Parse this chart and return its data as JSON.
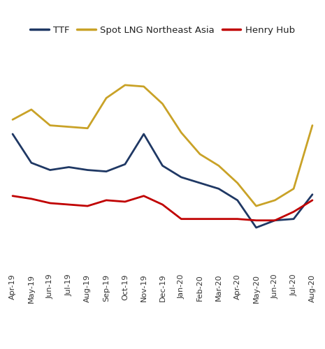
{
  "labels": [
    "Apr-19",
    "May-19",
    "Jun-19",
    "Jul-19",
    "Aug-19",
    "Sep-19",
    "Oct-19",
    "Nov-19",
    "Dec-19",
    "Jan-20",
    "Feb-20",
    "Mar-20",
    "Apr-20",
    "May-20",
    "Jun-20",
    "Jul-20",
    "Aug-20"
  ],
  "ttf": [
    4.8,
    3.8,
    3.55,
    3.65,
    3.55,
    3.5,
    3.75,
    4.8,
    3.7,
    3.3,
    3.1,
    2.9,
    2.5,
    1.55,
    1.8,
    1.85,
    2.7
  ],
  "lng": [
    5.3,
    5.65,
    5.1,
    5.05,
    5.0,
    6.05,
    6.5,
    6.45,
    5.85,
    4.85,
    4.1,
    3.7,
    3.1,
    2.3,
    2.5,
    2.9,
    5.1
  ],
  "henry": [
    2.65,
    2.55,
    2.4,
    2.35,
    2.3,
    2.5,
    2.45,
    2.65,
    2.35,
    1.85,
    1.85,
    1.85,
    1.85,
    1.8,
    1.8,
    2.1,
    2.5
  ],
  "ttf_color": "#1F3864",
  "lng_color": "#C9A227",
  "henry_color": "#C00000",
  "grid_color": "#AAAAAA",
  "background_color": "#FFFFFF",
  "ylim_min": 0,
  "ylim_max": 8,
  "n_gridlines": 9,
  "legend_labels": [
    "TTF",
    "Spot LNG Northeast Asia",
    "Henry Hub"
  ],
  "linewidth": 2.0,
  "tick_fontsize": 8.0,
  "legend_fontsize": 9.5
}
